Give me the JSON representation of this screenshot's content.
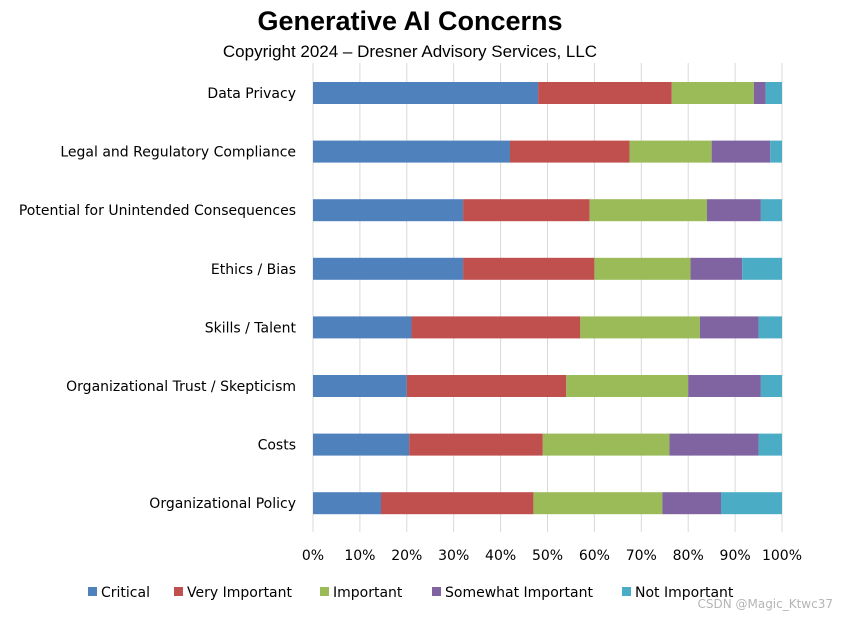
{
  "chart_data": {
    "type": "bar",
    "orientation": "horizontal",
    "stacked": true,
    "title": "Generative AI Concerns",
    "subtitle": "Copyright 2024 – Dresner Advisory Services, LLC",
    "categories": [
      "Data Privacy",
      "Legal and Regulatory Compliance",
      "Potential for Unintended Consequences",
      "Ethics / Bias",
      "Skills / Talent",
      "Organizational Trust / Skepticism",
      "Costs",
      "Organizational Policy"
    ],
    "series": [
      {
        "name": "Critical",
        "color": "#4F81BD",
        "values": [
          48,
          42,
          32,
          32,
          21,
          20,
          20.5,
          14.5
        ]
      },
      {
        "name": "Very Important",
        "color": "#C0504D",
        "values": [
          28.5,
          25.5,
          27,
          28,
          36,
          34,
          28.5,
          32.5
        ]
      },
      {
        "name": "Important",
        "color": "#9BBB59",
        "values": [
          17.5,
          17.5,
          25,
          20.5,
          25.5,
          26,
          27,
          27.5
        ]
      },
      {
        "name": "Somewhat Important",
        "color": "#8064A2",
        "values": [
          2.5,
          12.5,
          11.5,
          11,
          12.5,
          15.5,
          19,
          12.5
        ]
      },
      {
        "name": "Not Important",
        "color": "#4BACC6",
        "values": [
          3.5,
          2.5,
          4.5,
          8.5,
          5,
          4.5,
          5,
          13
        ]
      }
    ],
    "x_ticks": [
      "0%",
      "10%",
      "20%",
      "30%",
      "40%",
      "50%",
      "60%",
      "70%",
      "80%",
      "90%",
      "100%"
    ],
    "xlim": [
      0,
      100
    ],
    "legend_position": "bottom",
    "grid": "vertical"
  },
  "watermark": "CSDN @Magic_Ktwc37"
}
